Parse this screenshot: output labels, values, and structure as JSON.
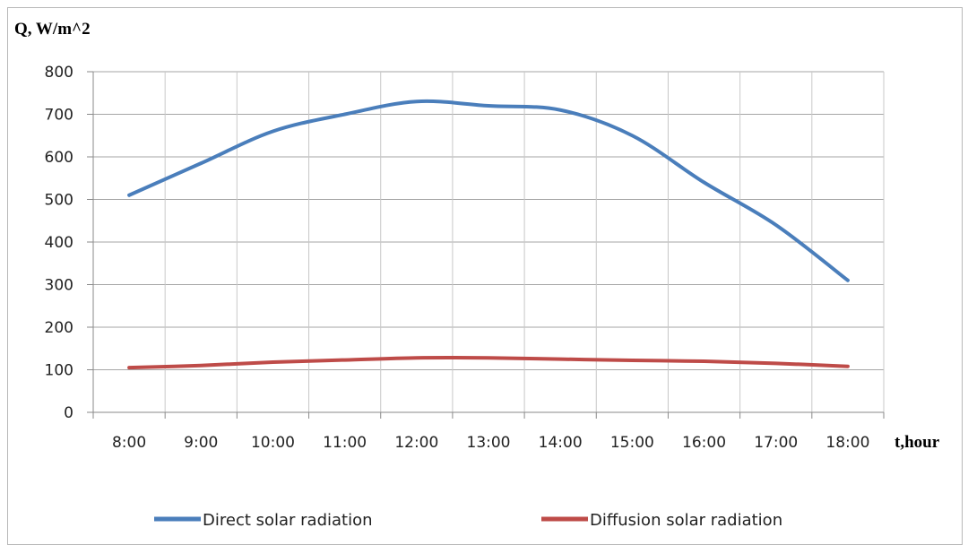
{
  "chart_data": {
    "type": "line",
    "ylabel": "Q, W/m^2",
    "xlabel": "t,hour",
    "categories": [
      "8:00",
      "9:00",
      "10:00",
      "11:00",
      "12:00",
      "13:00",
      "14:00",
      "15:00",
      "16:00",
      "17:00",
      "18:00"
    ],
    "ylim": [
      0,
      800
    ],
    "yticks": [
      0,
      100,
      200,
      300,
      400,
      500,
      600,
      700,
      800
    ],
    "grid": true,
    "legend_position": "bottom",
    "series": [
      {
        "name": "Direct solar radiation",
        "color": "#4a7ebb",
        "values": [
          510,
          585,
          660,
          700,
          730,
          720,
          710,
          650,
          540,
          440,
          310
        ]
      },
      {
        "name": "Diffusion solar radiation",
        "color": "#be4b48",
        "values": [
          105,
          110,
          118,
          123,
          128,
          128,
          125,
          122,
          120,
          115,
          108
        ]
      }
    ]
  }
}
